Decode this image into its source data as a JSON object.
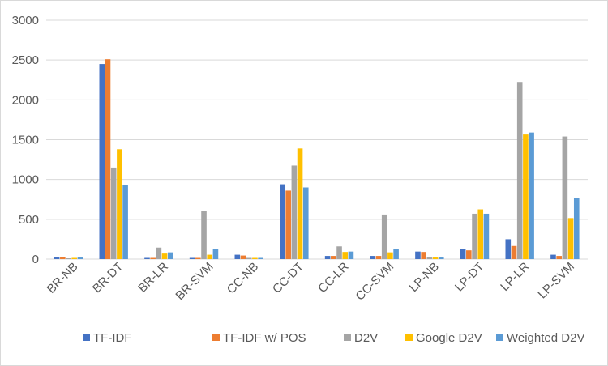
{
  "chart_data": {
    "type": "bar",
    "categories": [
      "BR-NB",
      "BR-DT",
      "BR-LR",
      "BR-SVM",
      "CC-NB",
      "CC-DT",
      "CC-LR",
      "CC-SVM",
      "LP-NB",
      "LP-DT",
      "LP-LR",
      "LP-SVM"
    ],
    "series": [
      {
        "name": "TF-IDF",
        "color": "#4472C4",
        "values": [
          30,
          2450,
          15,
          15,
          55,
          940,
          40,
          40,
          95,
          125,
          250,
          55
        ]
      },
      {
        "name": "TF-IDF w/ POS",
        "color": "#ED7D31",
        "values": [
          30,
          2510,
          15,
          15,
          45,
          860,
          40,
          40,
          90,
          110,
          165,
          40
        ]
      },
      {
        "name": "D2V",
        "color": "#A5A5A5",
        "values": [
          10,
          1150,
          145,
          605,
          15,
          1175,
          160,
          560,
          20,
          570,
          2225,
          1540
        ]
      },
      {
        "name": "Google D2V",
        "color": "#FFC000",
        "values": [
          15,
          1380,
          70,
          55,
          15,
          1390,
          90,
          85,
          20,
          625,
          1565,
          515
        ]
      },
      {
        "name": "Weighted D2V",
        "color": "#5B9BD5",
        "values": [
          20,
          930,
          85,
          125,
          15,
          900,
          95,
          125,
          20,
          570,
          1590,
          770
        ]
      }
    ],
    "y_ticks": [
      "0",
      "500",
      "1000",
      "1500",
      "2000",
      "2500",
      "3000"
    ],
    "ylim": [
      0,
      3000
    ],
    "grid": true,
    "legend_position": "bottom"
  }
}
